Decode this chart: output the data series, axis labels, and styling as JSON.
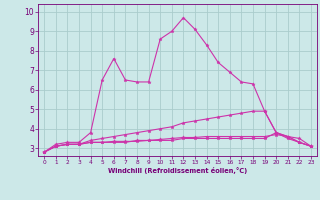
{
  "bg_color": "#cce8e8",
  "grid_color": "#aacccc",
  "line_color": "#cc33aa",
  "xlabel": "Windchill (Refroidissement éolien,°C)",
  "xlabel_color": "#770077",
  "tick_color": "#770077",
  "xlim": [
    -0.5,
    23.5
  ],
  "ylim": [
    2.6,
    10.4
  ],
  "xticks": [
    0,
    1,
    2,
    3,
    4,
    5,
    6,
    7,
    8,
    9,
    10,
    11,
    12,
    13,
    14,
    15,
    16,
    17,
    18,
    19,
    20,
    21,
    22,
    23
  ],
  "yticks": [
    3,
    4,
    5,
    6,
    7,
    8,
    9,
    10
  ],
  "series": [
    {
      "x": [
        0,
        1,
        2,
        3,
        4,
        5,
        6,
        7,
        8,
        9,
        10,
        11,
        12,
        13,
        14,
        15,
        16,
        17,
        18,
        19,
        20,
        21,
        22,
        23
      ],
      "y": [
        2.8,
        3.2,
        3.3,
        3.3,
        3.8,
        6.5,
        7.6,
        6.5,
        6.4,
        6.4,
        8.6,
        9.0,
        9.7,
        9.1,
        8.3,
        7.4,
        6.9,
        6.4,
        6.3,
        4.9,
        3.8,
        3.6,
        3.5,
        3.1
      ]
    },
    {
      "x": [
        0,
        1,
        2,
        3,
        4,
        5,
        6,
        7,
        8,
        9,
        10,
        11,
        12,
        13,
        14,
        15,
        16,
        17,
        18,
        19,
        20,
        21,
        22,
        23
      ],
      "y": [
        2.8,
        3.1,
        3.2,
        3.2,
        3.4,
        3.5,
        3.6,
        3.7,
        3.8,
        3.9,
        4.0,
        4.1,
        4.3,
        4.4,
        4.5,
        4.6,
        4.7,
        4.8,
        4.9,
        4.9,
        3.8,
        3.5,
        3.3,
        3.1
      ]
    },
    {
      "x": [
        0,
        1,
        2,
        3,
        4,
        5,
        6,
        7,
        8,
        9,
        10,
        11,
        12,
        13,
        14,
        15,
        16,
        17,
        18,
        19,
        20,
        21,
        22,
        23
      ],
      "y": [
        2.8,
        3.1,
        3.2,
        3.2,
        3.3,
        3.3,
        3.3,
        3.3,
        3.4,
        3.4,
        3.4,
        3.4,
        3.5,
        3.5,
        3.5,
        3.5,
        3.5,
        3.5,
        3.5,
        3.5,
        3.8,
        3.6,
        3.3,
        3.1
      ]
    },
    {
      "x": [
        0,
        1,
        2,
        3,
        4,
        5,
        6,
        7,
        8,
        9,
        10,
        11,
        12,
        13,
        14,
        15,
        16,
        17,
        18,
        19,
        20,
        21,
        22,
        23
      ],
      "y": [
        2.8,
        3.1,
        3.2,
        3.2,
        3.3,
        3.3,
        3.35,
        3.35,
        3.35,
        3.4,
        3.45,
        3.5,
        3.55,
        3.55,
        3.6,
        3.6,
        3.6,
        3.6,
        3.6,
        3.6,
        3.7,
        3.6,
        3.3,
        3.1
      ]
    }
  ]
}
